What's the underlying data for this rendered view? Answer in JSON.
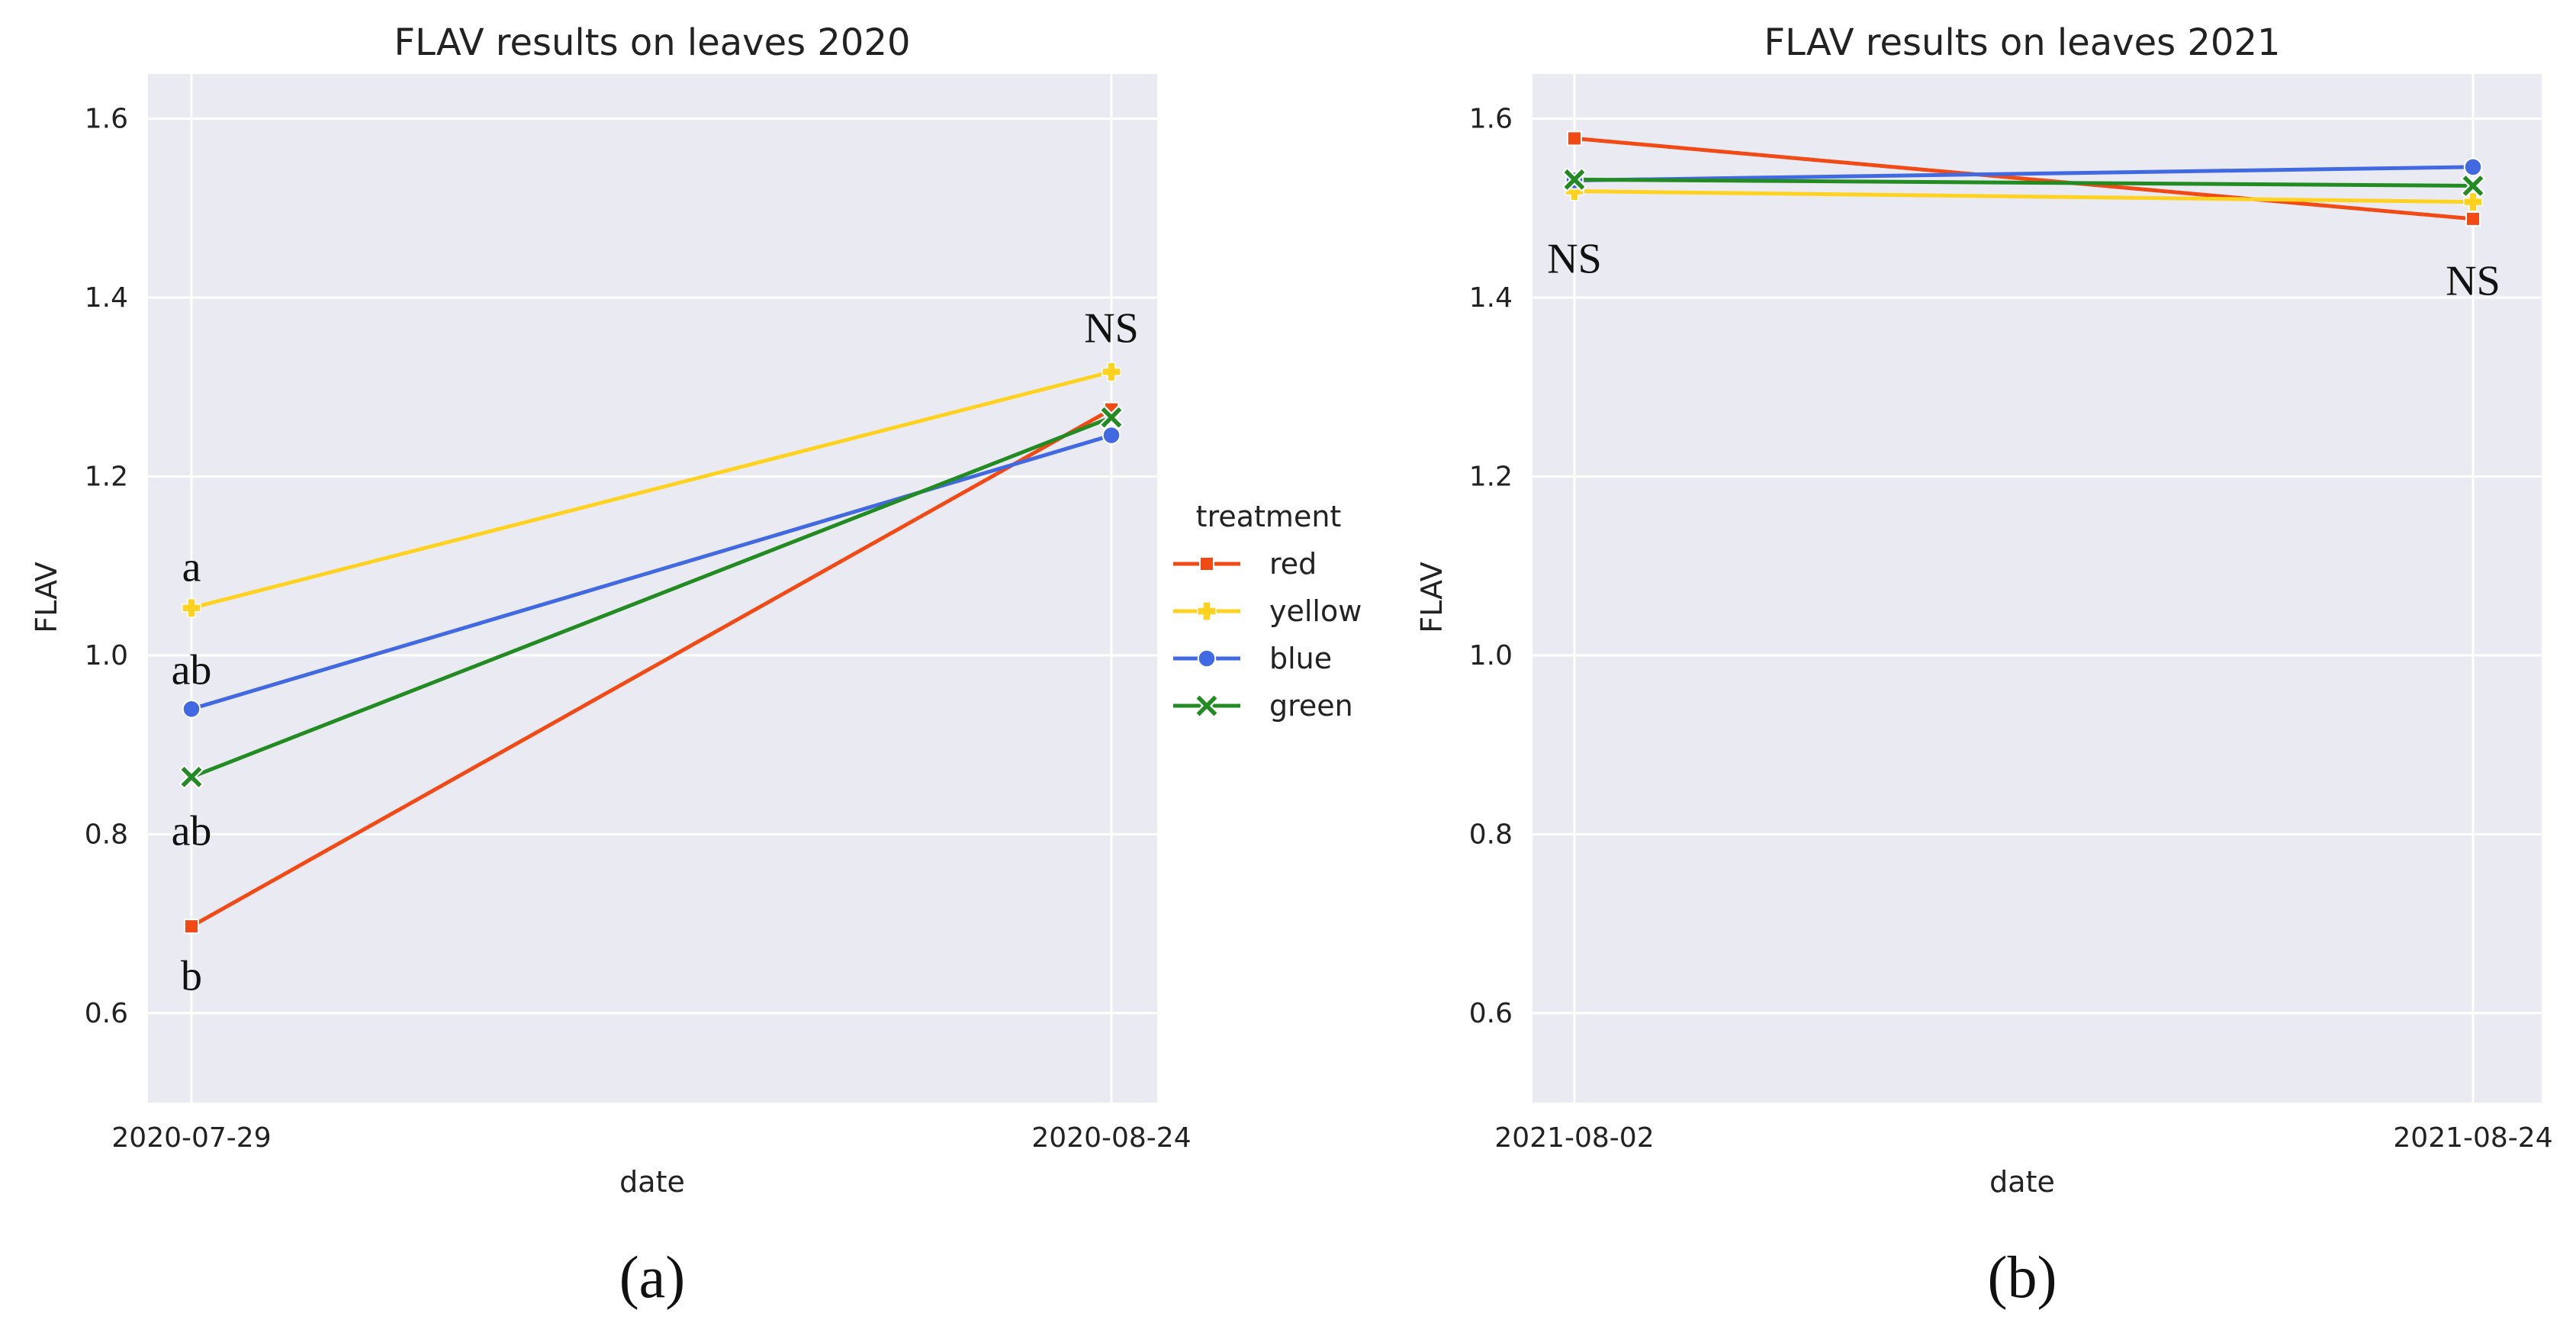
{
  "chart_data": [
    {
      "type": "line",
      "title": "FLAV results on leaves 2020",
      "xlabel": "date",
      "ylabel": "FLAV",
      "x": [
        "2020-07-29",
        "2020-08-24"
      ],
      "ylim": [
        0.5,
        1.65
      ],
      "yticks": [
        "0.6",
        "0.8",
        "1.0",
        "1.2",
        "1.4",
        "1.6"
      ],
      "series": [
        {
          "name": "red",
          "values": [
            0.697,
            1.275
          ]
        },
        {
          "name": "yellow",
          "values": [
            1.053,
            1.317
          ]
        },
        {
          "name": "blue",
          "values": [
            0.94,
            1.246
          ]
        },
        {
          "name": "green",
          "values": [
            0.864,
            1.266
          ]
        }
      ],
      "annotations": [
        {
          "text": "a",
          "x": "2020-07-29",
          "y": 1.1
        },
        {
          "text": "ab",
          "x": "2020-07-29",
          "y": 0.985
        },
        {
          "text": "ab",
          "x": "2020-07-29",
          "y": 0.805
        },
        {
          "text": "b",
          "x": "2020-07-29",
          "y": 0.643
        },
        {
          "text": "NS",
          "x": "2020-08-24",
          "y": 1.367
        }
      ],
      "panel_label": "(a)"
    },
    {
      "type": "line",
      "title": "FLAV results on leaves 2021",
      "xlabel": "date",
      "ylabel": "FLAV",
      "x": [
        "2021-08-02",
        "2021-08-24"
      ],
      "ylim": [
        0.5,
        1.65
      ],
      "yticks": [
        "0.6",
        "0.8",
        "1.0",
        "1.2",
        "1.4",
        "1.6"
      ],
      "series": [
        {
          "name": "red",
          "values": [
            1.578,
            1.488
          ]
        },
        {
          "name": "yellow",
          "values": [
            1.519,
            1.507
          ]
        },
        {
          "name": "blue",
          "values": [
            1.531,
            1.546
          ]
        },
        {
          "name": "green",
          "values": [
            1.532,
            1.525
          ]
        }
      ],
      "annotations": [
        {
          "text": "NS",
          "x": "2021-08-02",
          "y": 1.445
        },
        {
          "text": "NS",
          "x": "2021-08-24",
          "y": 1.42
        }
      ],
      "panel_label": "(b)"
    }
  ],
  "legend": {
    "title": "treatment",
    "items": [
      "red",
      "yellow",
      "blue",
      "green"
    ]
  },
  "colors": {
    "red": "#f24a14",
    "yellow": "#ffd21f",
    "blue": "#4169e1",
    "green": "#228b22",
    "plot_bg": "#eaeaf2",
    "grid": "#ffffff"
  },
  "markers": {
    "red": "square",
    "yellow": "plus",
    "blue": "circle",
    "green": "x"
  }
}
